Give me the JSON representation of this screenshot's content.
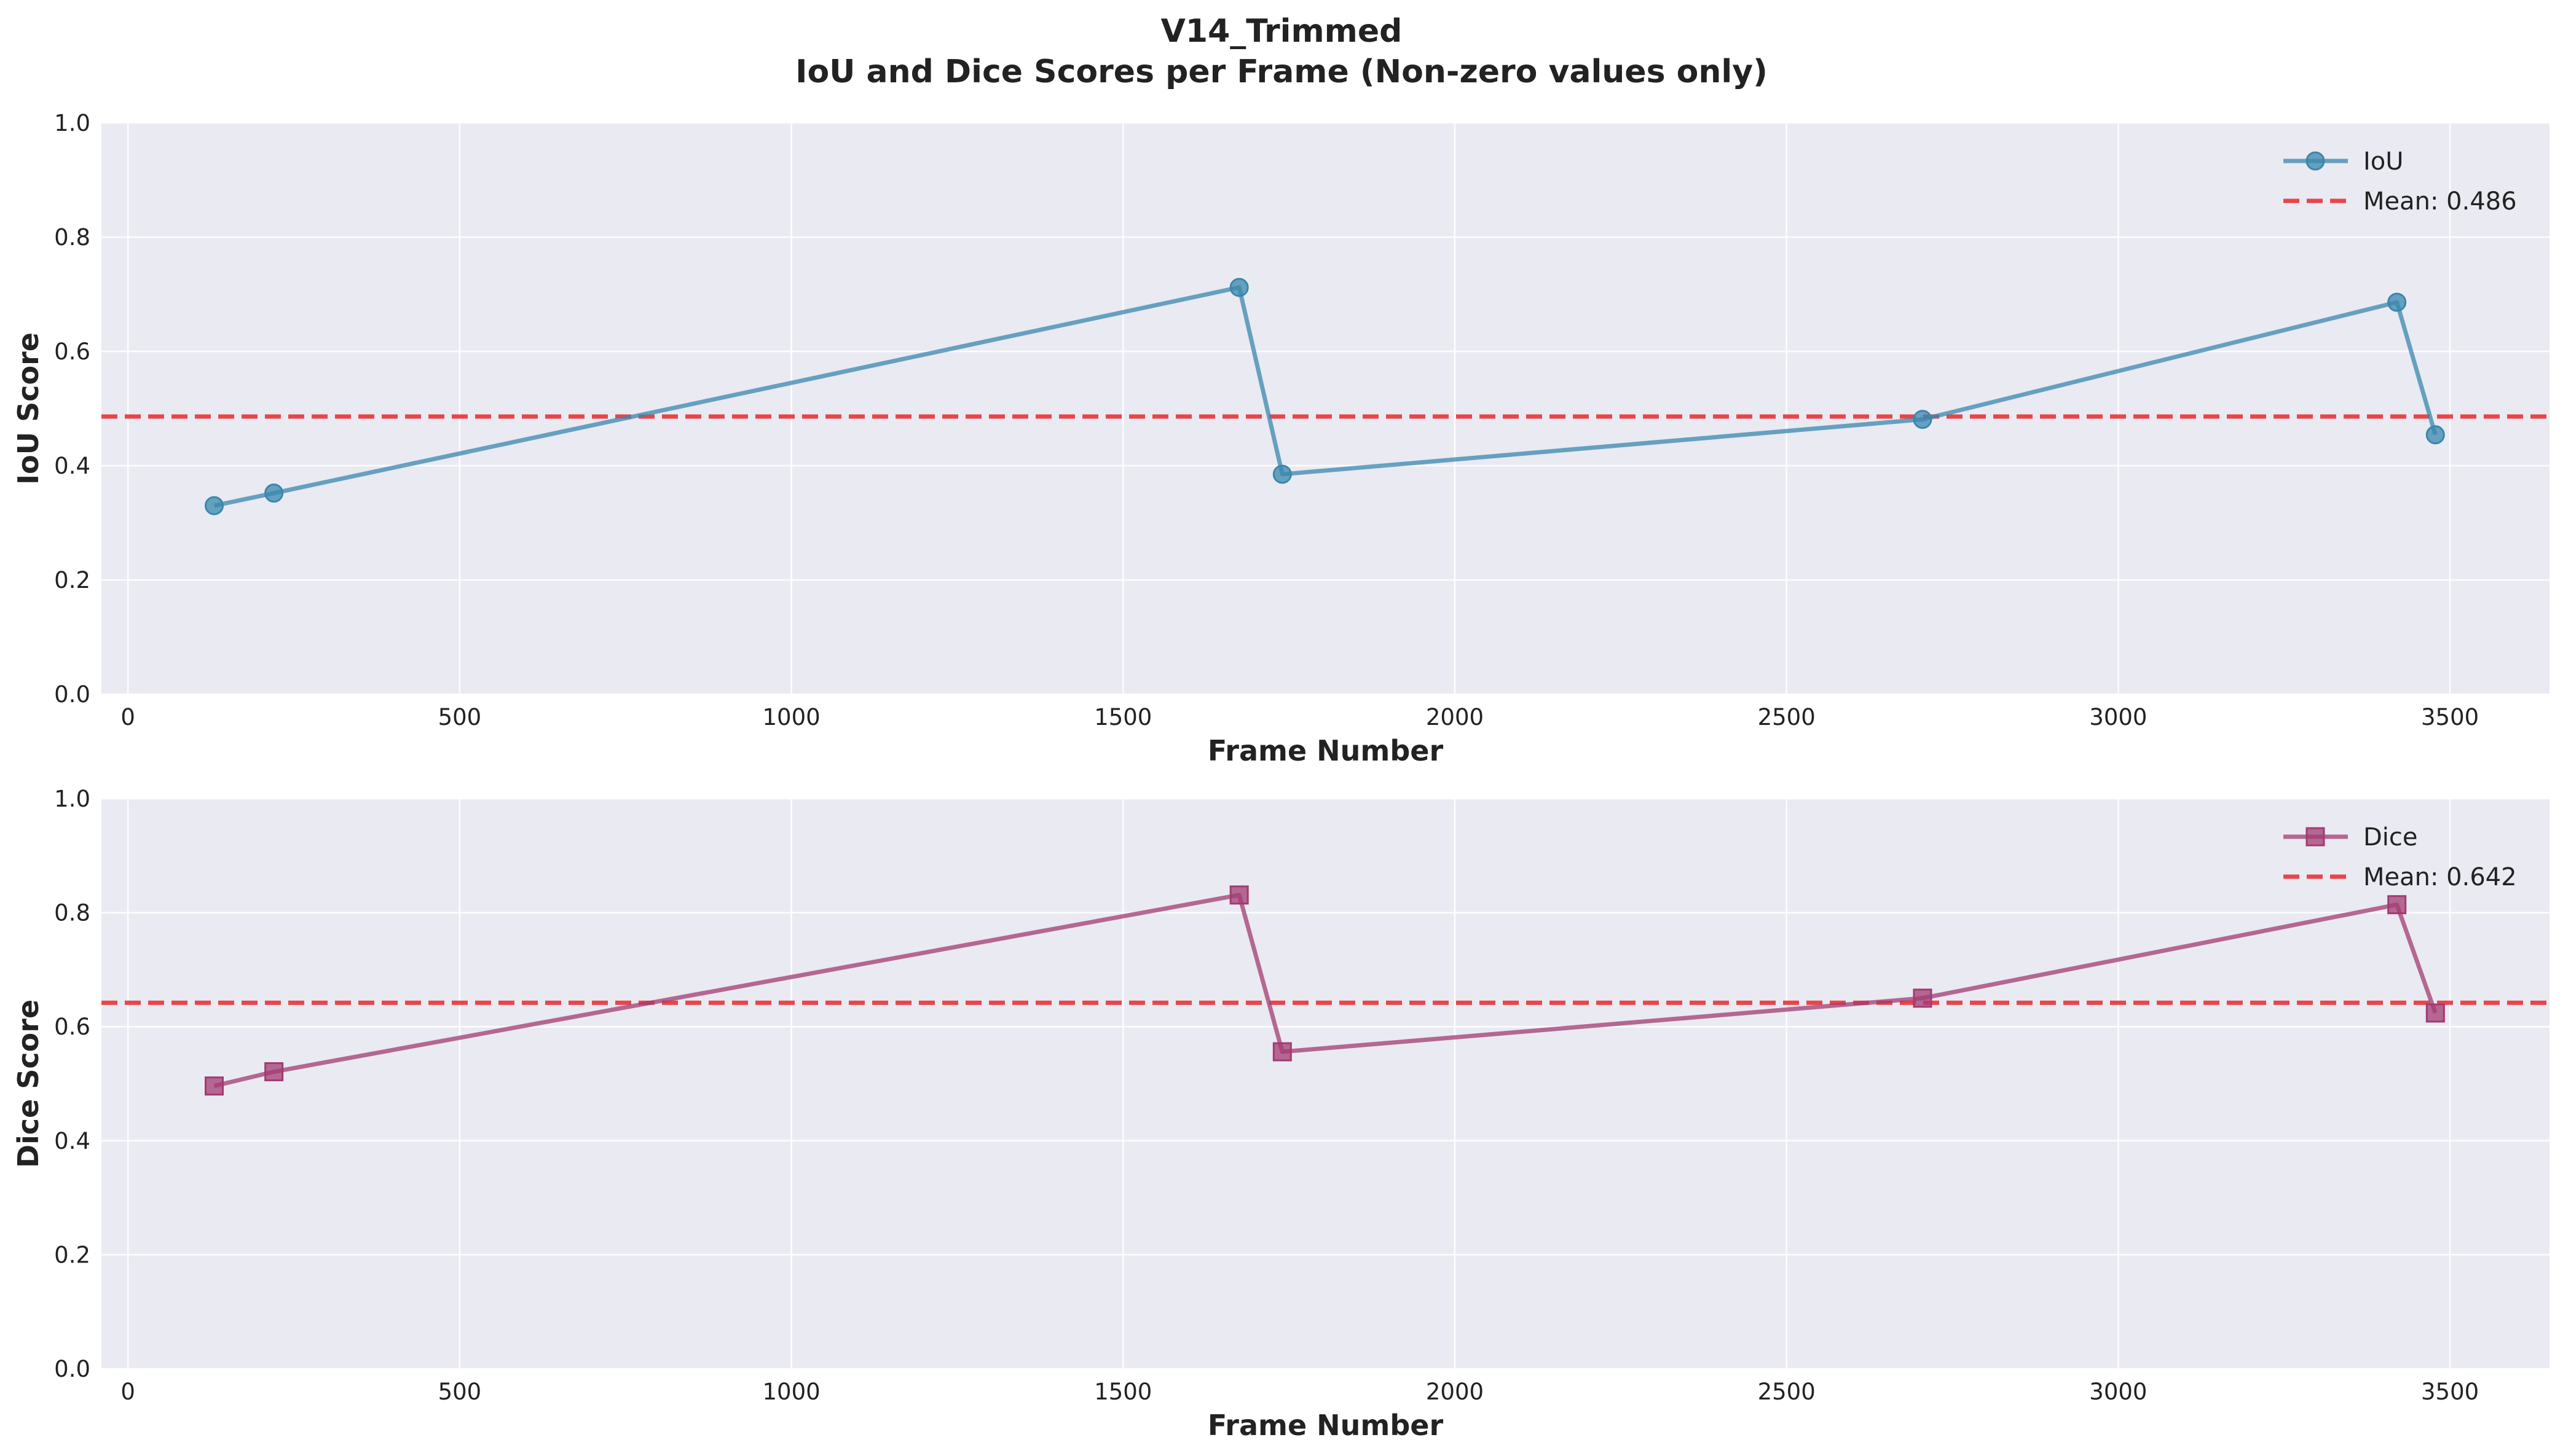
{
  "figure": {
    "title_line1": "V14_Trimmed",
    "title_line2": "IoU and Dice Scores per Frame (Non-zero values only)"
  },
  "chart_data": [
    {
      "type": "line",
      "xlabel": "Frame Number",
      "ylabel": "IoU Score",
      "xlim": [
        -40,
        3650
      ],
      "ylim": [
        0,
        1
      ],
      "xticks": [
        0,
        500,
        1000,
        1500,
        2000,
        2500,
        3000,
        3500
      ],
      "yticks": [
        0.0,
        0.2,
        0.4,
        0.6,
        0.8,
        1.0
      ],
      "ytick_labels": [
        "0.0",
        "0.2",
        "0.4",
        "0.6",
        "0.8",
        "1.0"
      ],
      "grid": true,
      "legend_position": "top-right",
      "series": [
        {
          "name": "IoU",
          "marker": "circle",
          "color": "#3A87AD",
          "x": [
            130,
            220,
            1675,
            1740,
            2705,
            3420,
            3478
          ],
          "y": [
            0.33,
            0.352,
            0.712,
            0.385,
            0.481,
            0.686,
            0.454
          ]
        }
      ],
      "reference_line": {
        "label": "Mean: 0.486",
        "y": 0.486,
        "color": "#E8282B",
        "style": "dashed"
      }
    },
    {
      "type": "line",
      "xlabel": "Frame Number",
      "ylabel": "Dice Score",
      "xlim": [
        -40,
        3650
      ],
      "ylim": [
        0,
        1
      ],
      "xticks": [
        0,
        500,
        1000,
        1500,
        2000,
        2500,
        3000,
        3500
      ],
      "yticks": [
        0.0,
        0.2,
        0.4,
        0.6,
        0.8,
        1.0
      ],
      "ytick_labels": [
        "0.0",
        "0.2",
        "0.4",
        "0.6",
        "0.8",
        "1.0"
      ],
      "grid": true,
      "legend_position": "top-right",
      "series": [
        {
          "name": "Dice",
          "marker": "square",
          "color": "#A23B72",
          "x": [
            130,
            220,
            1675,
            1740,
            2705,
            3420,
            3478
          ],
          "y": [
            0.496,
            0.521,
            0.831,
            0.556,
            0.65,
            0.814,
            0.624
          ]
        }
      ],
      "reference_line": {
        "label": "Mean: 0.642",
        "y": 0.642,
        "color": "#E8282B",
        "style": "dashed"
      }
    }
  ]
}
